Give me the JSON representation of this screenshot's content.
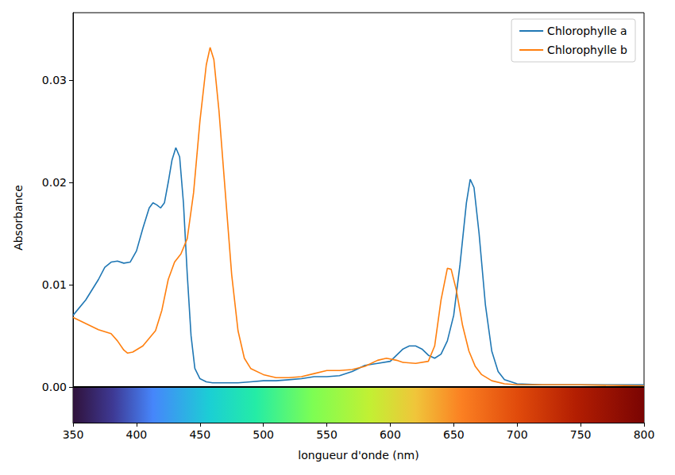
{
  "chart_data": {
    "type": "line",
    "x_label": "longueur d'onde (nm)",
    "y_label": "Absorbance",
    "xlim": [
      350,
      800
    ],
    "xticks": [
      350,
      400,
      450,
      500,
      550,
      600,
      650,
      700,
      750,
      800
    ],
    "ylim": [
      -0.0035,
      0.0366
    ],
    "yticks": [
      {
        "value": 0,
        "label": "0.00"
      },
      {
        "value": 0.01,
        "label": "0.01"
      },
      {
        "value": 0.02,
        "label": "0.02"
      },
      {
        "value": 0.03,
        "label": "0.03"
      }
    ],
    "grid": false,
    "legend": "upper right",
    "series": [
      {
        "name": "Chlorophylle a",
        "color": "#1f77b4",
        "x": [
          350,
          360,
          370,
          375,
          380,
          385,
          390,
          395,
          400,
          405,
          410,
          413,
          416,
          419,
          422,
          425,
          428,
          431,
          434,
          437,
          440,
          443,
          446,
          450,
          455,
          460,
          470,
          480,
          490,
          500,
          510,
          520,
          530,
          540,
          550,
          560,
          570,
          580,
          590,
          600,
          605,
          610,
          615,
          620,
          625,
          630,
          635,
          640,
          645,
          650,
          655,
          660,
          663,
          666,
          670,
          675,
          680,
          685,
          690,
          700,
          720,
          750,
          800
        ],
        "values": [
          0.007,
          0.0085,
          0.0105,
          0.0117,
          0.0122,
          0.0123,
          0.0121,
          0.0122,
          0.0133,
          0.0155,
          0.0175,
          0.018,
          0.0178,
          0.0175,
          0.018,
          0.02,
          0.0222,
          0.0234,
          0.0225,
          0.018,
          0.011,
          0.005,
          0.0018,
          0.0008,
          0.0005,
          0.0004,
          0.0004,
          0.0004,
          0.0005,
          0.0006,
          0.0006,
          0.0007,
          0.0008,
          0.001,
          0.001,
          0.0011,
          0.0015,
          0.0021,
          0.0023,
          0.0025,
          0.0031,
          0.0037,
          0.004,
          0.004,
          0.0037,
          0.0031,
          0.0028,
          0.0032,
          0.0045,
          0.007,
          0.012,
          0.018,
          0.0203,
          0.0195,
          0.015,
          0.008,
          0.0035,
          0.0015,
          0.0007,
          0.0003,
          0.0002,
          0.0002,
          0.0002
        ]
      },
      {
        "name": "Chlorophylle b",
        "color": "#ff7f0e",
        "x": [
          350,
          360,
          370,
          380,
          385,
          390,
          393,
          397,
          405,
          415,
          420,
          425,
          430,
          435,
          440,
          445,
          450,
          455,
          458,
          461,
          465,
          470,
          475,
          480,
          485,
          490,
          500,
          510,
          520,
          530,
          540,
          550,
          560,
          570,
          580,
          590,
          597,
          605,
          610,
          620,
          630,
          635,
          640,
          645,
          648,
          652,
          657,
          662,
          667,
          672,
          680,
          690,
          700,
          750,
          800
        ],
        "values": [
          0.0068,
          0.0062,
          0.0056,
          0.0052,
          0.0045,
          0.0036,
          0.0033,
          0.0034,
          0.004,
          0.0055,
          0.0075,
          0.0105,
          0.0122,
          0.013,
          0.0145,
          0.019,
          0.026,
          0.0315,
          0.0332,
          0.032,
          0.027,
          0.019,
          0.011,
          0.0055,
          0.0028,
          0.0018,
          0.0012,
          0.0009,
          0.0009,
          0.001,
          0.0013,
          0.0016,
          0.0016,
          0.0017,
          0.002,
          0.0026,
          0.0028,
          0.0026,
          0.0024,
          0.0023,
          0.0025,
          0.004,
          0.0085,
          0.0116,
          0.0115,
          0.0095,
          0.006,
          0.0035,
          0.002,
          0.0012,
          0.0006,
          0.0003,
          0.0002,
          0.0002,
          0.0001
        ]
      }
    ]
  }
}
